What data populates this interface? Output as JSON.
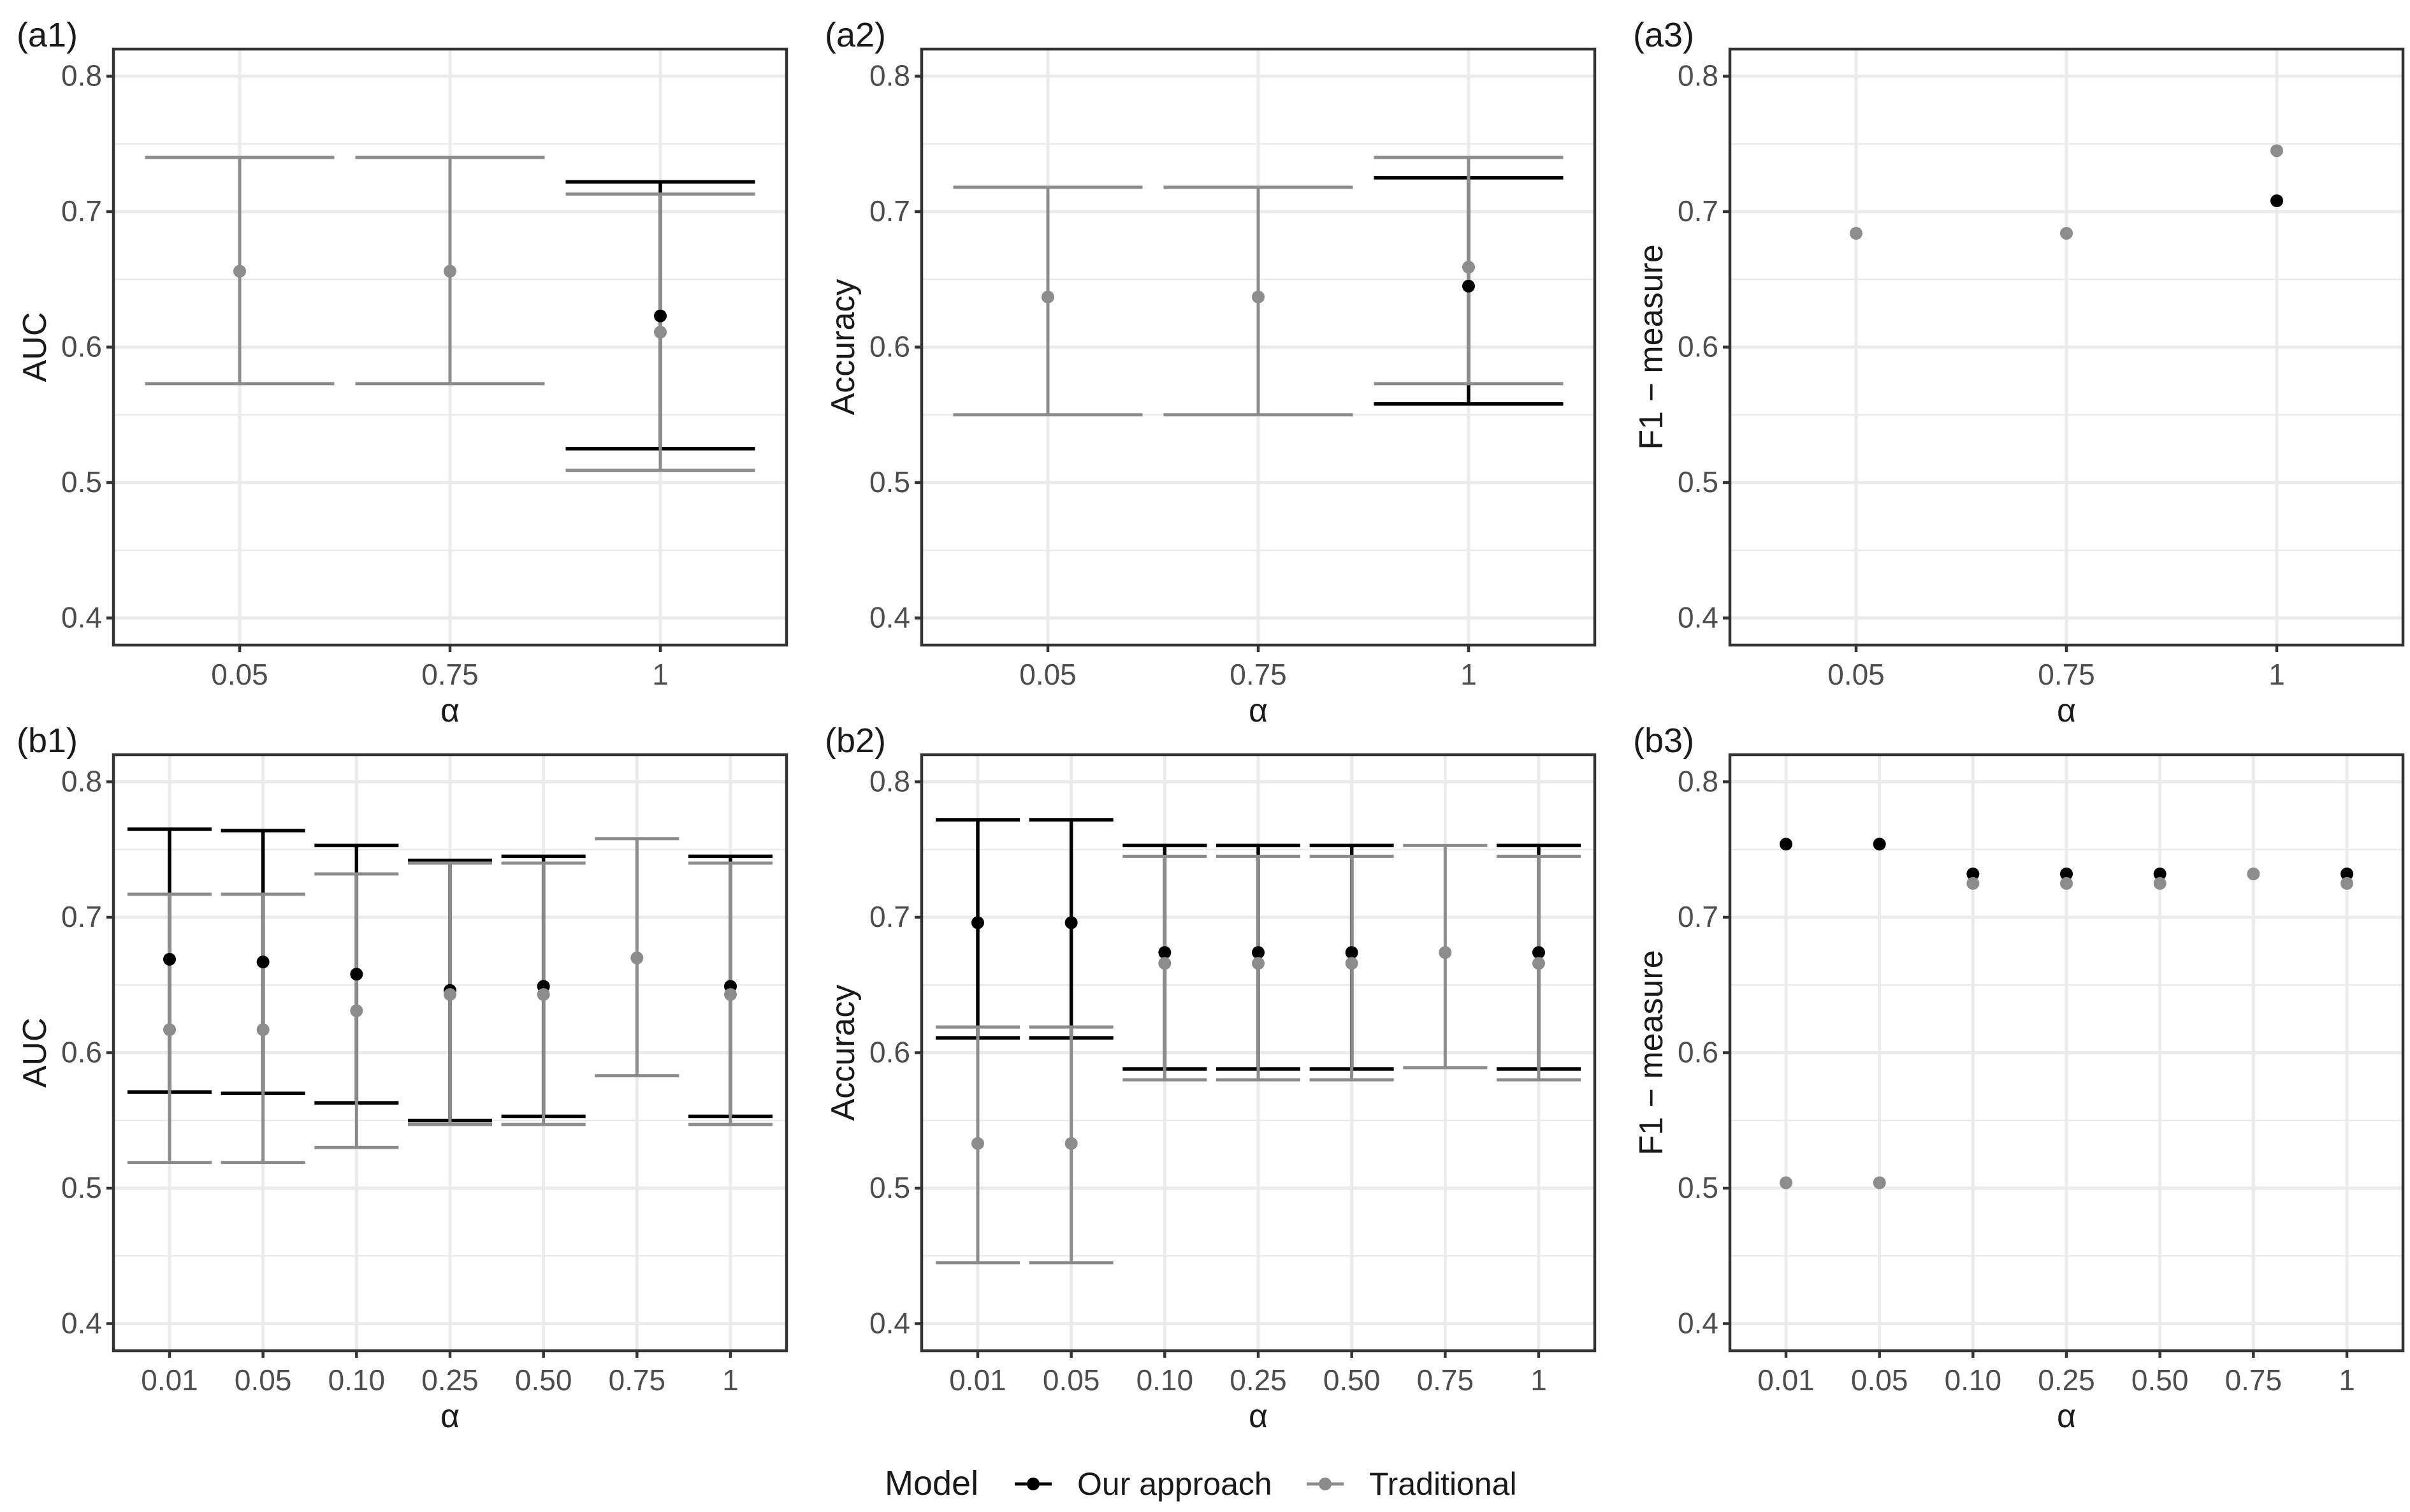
{
  "colors": {
    "our": "#000000",
    "traditional": "#8c8c8c",
    "grid": "#ebebeb",
    "frame": "#333333",
    "text": "#1a1a1a"
  },
  "legend": {
    "title": "Model",
    "items": [
      {
        "label": "Our approach",
        "color": "#000000"
      },
      {
        "label": "Traditional",
        "color": "#8c8c8c"
      }
    ],
    "position": "bottom"
  },
  "chart_data": [
    {
      "id": "a1",
      "panel_label": "(a1)",
      "type": "scatter",
      "errorbars": true,
      "xlabel": "α",
      "ylabel": "AUC",
      "categories": [
        "0.05",
        "0.75",
        "1"
      ],
      "ylim": [
        0.38,
        0.82
      ],
      "yticks": [
        0.4,
        0.5,
        0.6,
        0.7,
        0.8
      ],
      "grid": true,
      "series": [
        {
          "name": "Our approach",
          "points": [
            {
              "x": "1",
              "y": 0.623,
              "lo": 0.525,
              "hi": 0.722
            }
          ]
        },
        {
          "name": "Traditional",
          "points": [
            {
              "x": "0.05",
              "y": 0.656,
              "lo": 0.573,
              "hi": 0.74
            },
            {
              "x": "0.75",
              "y": 0.656,
              "lo": 0.573,
              "hi": 0.74
            },
            {
              "x": "1",
              "y": 0.611,
              "lo": 0.509,
              "hi": 0.713
            }
          ]
        }
      ]
    },
    {
      "id": "a2",
      "panel_label": "(a2)",
      "type": "scatter",
      "errorbars": true,
      "xlabel": "α",
      "ylabel": "Accuracy",
      "categories": [
        "0.05",
        "0.75",
        "1"
      ],
      "ylim": [
        0.38,
        0.82
      ],
      "yticks": [
        0.4,
        0.5,
        0.6,
        0.7,
        0.8
      ],
      "grid": true,
      "series": [
        {
          "name": "Our approach",
          "points": [
            {
              "x": "1",
              "y": 0.645,
              "lo": 0.558,
              "hi": 0.725
            }
          ]
        },
        {
          "name": "Traditional",
          "points": [
            {
              "x": "0.05",
              "y": 0.637,
              "lo": 0.55,
              "hi": 0.718
            },
            {
              "x": "0.75",
              "y": 0.637,
              "lo": 0.55,
              "hi": 0.718
            },
            {
              "x": "1",
              "y": 0.659,
              "lo": 0.573,
              "hi": 0.74
            }
          ]
        }
      ]
    },
    {
      "id": "a3",
      "panel_label": "(a3)",
      "type": "scatter",
      "errorbars": false,
      "xlabel": "α",
      "ylabel": "F1 − measure",
      "categories": [
        "0.05",
        "0.75",
        "1"
      ],
      "ylim": [
        0.38,
        0.82
      ],
      "yticks": [
        0.4,
        0.5,
        0.6,
        0.7,
        0.8
      ],
      "grid": true,
      "series": [
        {
          "name": "Our approach",
          "points": [
            {
              "x": "1",
              "y": 0.708
            }
          ]
        },
        {
          "name": "Traditional",
          "points": [
            {
              "x": "0.05",
              "y": 0.684
            },
            {
              "x": "0.75",
              "y": 0.684
            },
            {
              "x": "1",
              "y": 0.745
            }
          ]
        }
      ]
    },
    {
      "id": "b1",
      "panel_label": "(b1)",
      "type": "scatter",
      "errorbars": true,
      "xlabel": "α",
      "ylabel": "AUC",
      "categories": [
        "0.01",
        "0.05",
        "0.10",
        "0.25",
        "0.50",
        "0.75",
        "1"
      ],
      "ylim": [
        0.38,
        0.82
      ],
      "yticks": [
        0.4,
        0.5,
        0.6,
        0.7,
        0.8
      ],
      "grid": true,
      "series": [
        {
          "name": "Our approach",
          "points": [
            {
              "x": "0.01",
              "y": 0.669,
              "lo": 0.571,
              "hi": 0.765
            },
            {
              "x": "0.05",
              "y": 0.667,
              "lo": 0.57,
              "hi": 0.764
            },
            {
              "x": "0.10",
              "y": 0.658,
              "lo": 0.563,
              "hi": 0.753
            },
            {
              "x": "0.25",
              "y": 0.646,
              "lo": 0.55,
              "hi": 0.742
            },
            {
              "x": "0.50",
              "y": 0.649,
              "lo": 0.553,
              "hi": 0.745
            },
            {
              "x": "1",
              "y": 0.649,
              "lo": 0.553,
              "hi": 0.745
            }
          ]
        },
        {
          "name": "Traditional",
          "points": [
            {
              "x": "0.01",
              "y": 0.617,
              "lo": 0.519,
              "hi": 0.717
            },
            {
              "x": "0.05",
              "y": 0.617,
              "lo": 0.519,
              "hi": 0.717
            },
            {
              "x": "0.10",
              "y": 0.631,
              "lo": 0.53,
              "hi": 0.732
            },
            {
              "x": "0.25",
              "y": 0.643,
              "lo": 0.547,
              "hi": 0.74
            },
            {
              "x": "0.50",
              "y": 0.643,
              "lo": 0.547,
              "hi": 0.74
            },
            {
              "x": "0.75",
              "y": 0.67,
              "lo": 0.583,
              "hi": 0.758
            },
            {
              "x": "1",
              "y": 0.643,
              "lo": 0.547,
              "hi": 0.74
            }
          ]
        }
      ]
    },
    {
      "id": "b2",
      "panel_label": "(b2)",
      "type": "scatter",
      "errorbars": true,
      "xlabel": "α",
      "ylabel": "Accuracy",
      "categories": [
        "0.01",
        "0.05",
        "0.10",
        "0.25",
        "0.50",
        "0.75",
        "1"
      ],
      "ylim": [
        0.38,
        0.82
      ],
      "yticks": [
        0.4,
        0.5,
        0.6,
        0.7,
        0.8
      ],
      "grid": true,
      "series": [
        {
          "name": "Our approach",
          "points": [
            {
              "x": "0.01",
              "y": 0.696,
              "lo": 0.611,
              "hi": 0.772
            },
            {
              "x": "0.05",
              "y": 0.696,
              "lo": 0.611,
              "hi": 0.772
            },
            {
              "x": "0.10",
              "y": 0.674,
              "lo": 0.588,
              "hi": 0.753
            },
            {
              "x": "0.25",
              "y": 0.674,
              "lo": 0.588,
              "hi": 0.753
            },
            {
              "x": "0.50",
              "y": 0.674,
              "lo": 0.588,
              "hi": 0.753
            },
            {
              "x": "1",
              "y": 0.674,
              "lo": 0.588,
              "hi": 0.753
            }
          ]
        },
        {
          "name": "Traditional",
          "points": [
            {
              "x": "0.01",
              "y": 0.533,
              "lo": 0.445,
              "hi": 0.619
            },
            {
              "x": "0.05",
              "y": 0.533,
              "lo": 0.445,
              "hi": 0.619
            },
            {
              "x": "0.10",
              "y": 0.666,
              "lo": 0.58,
              "hi": 0.745
            },
            {
              "x": "0.25",
              "y": 0.666,
              "lo": 0.58,
              "hi": 0.745
            },
            {
              "x": "0.50",
              "y": 0.666,
              "lo": 0.58,
              "hi": 0.745
            },
            {
              "x": "0.75",
              "y": 0.674,
              "lo": 0.589,
              "hi": 0.753
            },
            {
              "x": "1",
              "y": 0.666,
              "lo": 0.58,
              "hi": 0.745
            }
          ]
        }
      ]
    },
    {
      "id": "b3",
      "panel_label": "(b3)",
      "type": "scatter",
      "errorbars": false,
      "xlabel": "α",
      "ylabel": "F1 − measure",
      "categories": [
        "0.01",
        "0.05",
        "0.10",
        "0.25",
        "0.50",
        "0.75",
        "1"
      ],
      "ylim": [
        0.38,
        0.82
      ],
      "yticks": [
        0.4,
        0.5,
        0.6,
        0.7,
        0.8
      ],
      "grid": true,
      "series": [
        {
          "name": "Our approach",
          "points": [
            {
              "x": "0.01",
              "y": 0.754
            },
            {
              "x": "0.05",
              "y": 0.754
            },
            {
              "x": "0.10",
              "y": 0.732
            },
            {
              "x": "0.25",
              "y": 0.732
            },
            {
              "x": "0.50",
              "y": 0.732
            },
            {
              "x": "1",
              "y": 0.732
            }
          ]
        },
        {
          "name": "Traditional",
          "points": [
            {
              "x": "0.01",
              "y": 0.504
            },
            {
              "x": "0.05",
              "y": 0.504
            },
            {
              "x": "0.10",
              "y": 0.725
            },
            {
              "x": "0.25",
              "y": 0.725
            },
            {
              "x": "0.50",
              "y": 0.725
            },
            {
              "x": "0.75",
              "y": 0.732
            },
            {
              "x": "1",
              "y": 0.725
            }
          ]
        }
      ]
    }
  ]
}
